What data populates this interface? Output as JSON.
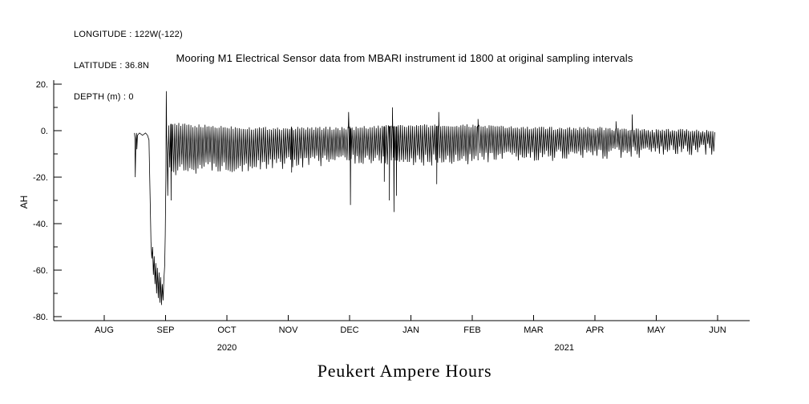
{
  "header": {
    "longitude": "LONGITUDE : 122W(-122)",
    "latitude": "LATITUDE : 36.8N",
    "depth": "DEPTH (m) : 0"
  },
  "title": "Mooring M1 Electrical Sensor data from MBARI instrument id 1800 at original sampling intervals",
  "footer_title": "Peukert Ampere Hours",
  "colors": {
    "line": "#000000",
    "axis": "#000000",
    "background": "#ffffff"
  },
  "chart_data": {
    "type": "line",
    "title": "Mooring M1 Electrical Sensor data from MBARI instrument id 1800 at original sampling intervals",
    "xlabel": "",
    "ylabel": "AH",
    "ylim": [
      -80,
      20
    ],
    "grid": false,
    "legend": "none",
    "y_ticks": [
      20,
      0,
      -20,
      -40,
      -60,
      -80
    ],
    "y_tick_labels": [
      "20.",
      "0.",
      "-20.",
      "-40.",
      "-60.",
      "-80."
    ],
    "y_minor_ticks": [
      10,
      -10,
      -30,
      -50,
      -70
    ],
    "x_tick_labels": [
      "AUG",
      "SEP",
      "OCT",
      "NOV",
      "DEC",
      "JAN",
      "FEB",
      "MAR",
      "APR",
      "MAY",
      "JUN"
    ],
    "year_labels": [
      {
        "text": "2020",
        "month_index": 2
      },
      {
        "text": "2021",
        "month_index": 7.5
      }
    ],
    "series": {
      "name": "Peukert Ampere Hours",
      "units": "AH",
      "time_axis": "days since 2020-08-01",
      "description": "Dense daily discharge/charge oscillation mostly between 0 and -15 AH; deep discharge to -75 in late Aug 2020, recovery spike to +17 at Sep 1; isolated dips near Dec 1 (-32), late Dec (-35), mid Jan (-23).",
      "initial_profile": [
        [
          15.0,
          -1
        ],
        [
          15.2,
          -3
        ],
        [
          15.4,
          -20
        ],
        [
          15.7,
          -4
        ],
        [
          16.0,
          -1
        ],
        [
          16.2,
          -8
        ],
        [
          16.5,
          -2
        ],
        [
          17.5,
          -1
        ],
        [
          19.0,
          -2
        ],
        [
          20.5,
          -1
        ],
        [
          21.5,
          -2
        ],
        [
          22.2,
          -4
        ],
        [
          22.8,
          -30
        ],
        [
          23.2,
          -48
        ],
        [
          23.6,
          -55
        ],
        [
          24.0,
          -50
        ],
        [
          24.4,
          -62
        ],
        [
          24.8,
          -54
        ],
        [
          25.2,
          -66
        ],
        [
          25.6,
          -57
        ],
        [
          26.0,
          -70
        ],
        [
          26.4,
          -59
        ],
        [
          26.8,
          -72
        ],
        [
          27.2,
          -61
        ],
        [
          27.6,
          -74
        ],
        [
          28.0,
          -63
        ],
        [
          28.4,
          -75
        ],
        [
          28.8,
          -66
        ],
        [
          29.2,
          -73
        ],
        [
          29.6,
          -64
        ],
        [
          30.0,
          -58
        ],
        [
          30.3,
          -45
        ],
        [
          30.6,
          -20
        ],
        [
          30.8,
          17
        ],
        [
          31.0,
          -2
        ],
        [
          31.3,
          -15
        ],
        [
          31.5,
          -28
        ],
        [
          31.8,
          -8
        ],
        [
          32.0,
          -2
        ]
      ],
      "oscillation": {
        "start_day": 32,
        "end_day": 303,
        "half_period_days": 0.5,
        "envelope": [
          [
            32,
            3,
            -18
          ],
          [
            45,
            2,
            -16
          ],
          [
            75,
            1,
            -15
          ],
          [
            105,
            1,
            -13
          ],
          [
            122,
            1,
            -12
          ],
          [
            150,
            2,
            -13
          ],
          [
            184,
            2,
            -12
          ],
          [
            212,
            1,
            -11
          ],
          [
            243,
            1,
            -10
          ],
          [
            273,
            0,
            -9
          ],
          [
            303,
            0,
            -8
          ]
        ]
      },
      "events": [
        {
          "day": 33.2,
          "value": -30
        },
        {
          "day": 93.0,
          "value": -18
        },
        {
          "day": 121.3,
          "value": 8
        },
        {
          "day": 122.2,
          "value": -32
        },
        {
          "day": 139.0,
          "value": -22
        },
        {
          "day": 141.5,
          "value": -30
        },
        {
          "day": 143.0,
          "value": 10
        },
        {
          "day": 143.8,
          "value": -35
        },
        {
          "day": 145.0,
          "value": -28
        },
        {
          "day": 165.0,
          "value": -23
        },
        {
          "day": 166.0,
          "value": 8
        },
        {
          "day": 185.5,
          "value": 5
        },
        {
          "day": 254.0,
          "value": 4
        },
        {
          "day": 262.0,
          "value": 7
        }
      ]
    }
  }
}
